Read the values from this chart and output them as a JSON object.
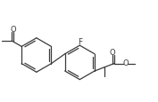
{
  "bg_color": "#ffffff",
  "line_color": "#3a3a3a",
  "line_width": 0.9,
  "font_size": 6.0,
  "figsize": [
    1.77,
    1.16
  ],
  "dpi": 100,
  "xlim": [
    0.0,
    10.5
  ],
  "ylim": [
    0.5,
    6.5
  ]
}
